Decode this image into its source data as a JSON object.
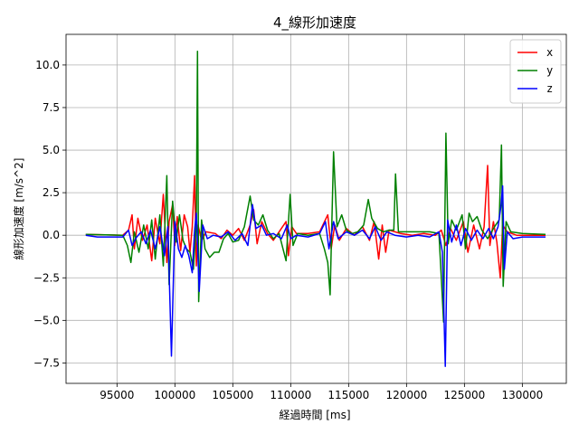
{
  "chart_data": {
    "type": "line",
    "title": "4_線形加速度",
    "xlabel": "経過時間 [ms]",
    "ylabel": "線形加速度 [m/s^2]",
    "xlim": [
      90600,
      133800
    ],
    "ylim": [
      -8.7,
      11.8
    ],
    "xticks": [
      95000,
      100000,
      105000,
      110000,
      115000,
      120000,
      125000,
      130000
    ],
    "xtick_labels": [
      "95000",
      "100000",
      "105000",
      "110000",
      "115000",
      "120000",
      "125000",
      "130000"
    ],
    "yticks": [
      -7.5,
      -5.0,
      -2.5,
      0.0,
      2.5,
      5.0,
      7.5,
      10.0
    ],
    "ytick_labels": [
      "−7.5",
      "−5.0",
      "−2.5",
      "0.0",
      "2.5",
      "5.0",
      "7.5",
      "10.0"
    ],
    "grid": true,
    "legend_position": "top-right",
    "series": [
      {
        "name": "x",
        "color": "#ff0000",
        "points": [
          [
            92300,
            0.05
          ],
          [
            95500,
            0.0
          ],
          [
            96000,
            0.3
          ],
          [
            96300,
            1.2
          ],
          [
            96500,
            -0.8
          ],
          [
            96800,
            1.0
          ],
          [
            97200,
            -0.3
          ],
          [
            97600,
            0.6
          ],
          [
            98000,
            -1.5
          ],
          [
            98300,
            1.0
          ],
          [
            98700,
            -0.5
          ],
          [
            99000,
            2.4
          ],
          [
            99300,
            -1.6
          ],
          [
            99500,
            0.8
          ],
          [
            99800,
            1.8
          ],
          [
            100000,
            -0.6
          ],
          [
            100200,
            1.1
          ],
          [
            100500,
            -0.9
          ],
          [
            100800,
            1.2
          ],
          [
            101100,
            0.5
          ],
          [
            101300,
            -1.0
          ],
          [
            101500,
            0.5
          ],
          [
            101700,
            3.5
          ],
          [
            101850,
            -1.8
          ],
          [
            102000,
            0.6
          ],
          [
            102300,
            -0.3
          ],
          [
            102700,
            0.2
          ],
          [
            103500,
            0.1
          ],
          [
            104000,
            -0.2
          ],
          [
            104500,
            0.3
          ],
          [
            105000,
            0.0
          ],
          [
            105500,
            0.4
          ],
          [
            106000,
            -0.3
          ],
          [
            106500,
            0.6
          ],
          [
            106800,
            1.5
          ],
          [
            107100,
            -0.5
          ],
          [
            107500,
            0.8
          ],
          [
            108000,
            0.1
          ],
          [
            108500,
            -0.3
          ],
          [
            109000,
            0.2
          ],
          [
            109600,
            0.8
          ],
          [
            109800,
            -1.2
          ],
          [
            110100,
            0.5
          ],
          [
            110500,
            0.1
          ],
          [
            111500,
            0.1
          ],
          [
            112500,
            0.2
          ],
          [
            113200,
            1.2
          ],
          [
            113500,
            -0.8
          ],
          [
            113800,
            0.6
          ],
          [
            114200,
            -0.3
          ],
          [
            114800,
            0.4
          ],
          [
            115500,
            0.0
          ],
          [
            116200,
            0.5
          ],
          [
            116800,
            -0.3
          ],
          [
            117200,
            0.8
          ],
          [
            117600,
            -1.4
          ],
          [
            117900,
            0.6
          ],
          [
            118200,
            -1.0
          ],
          [
            118500,
            0.3
          ],
          [
            119000,
            0.2
          ],
          [
            119500,
            0.1
          ],
          [
            120500,
            0.0
          ],
          [
            121500,
            0.1
          ],
          [
            122500,
            0.0
          ],
          [
            123000,
            0.3
          ],
          [
            123400,
            -0.6
          ],
          [
            123800,
            0.4
          ],
          [
            124300,
            -0.3
          ],
          [
            124900,
            0.8
          ],
          [
            125300,
            -1.0
          ],
          [
            125800,
            0.6
          ],
          [
            126300,
            -0.8
          ],
          [
            126700,
            0.5
          ],
          [
            127000,
            4.1
          ],
          [
            127200,
            -0.6
          ],
          [
            127500,
            0.8
          ],
          [
            127800,
            -0.4
          ],
          [
            128100,
            -2.5
          ],
          [
            128300,
            0.6
          ],
          [
            128700,
            0.2
          ],
          [
            129500,
            0.0
          ],
          [
            132000,
            0.0
          ]
        ]
      },
      {
        "name": "y",
        "color": "#008000",
        "points": [
          [
            92300,
            0.05
          ],
          [
            95500,
            0.0
          ],
          [
            95900,
            -0.6
          ],
          [
            96200,
            -1.6
          ],
          [
            96500,
            0.2
          ],
          [
            96900,
            -1.0
          ],
          [
            97300,
            0.6
          ],
          [
            97700,
            -0.8
          ],
          [
            98000,
            0.9
          ],
          [
            98300,
            -1.4
          ],
          [
            98700,
            1.2
          ],
          [
            99000,
            -1.8
          ],
          [
            99300,
            3.5
          ],
          [
            99500,
            -2.9
          ],
          [
            99800,
            2.0
          ],
          [
            100100,
            -0.4
          ],
          [
            100400,
            1.2
          ],
          [
            100700,
            -0.3
          ],
          [
            101000,
            -0.8
          ],
          [
            101300,
            -1.0
          ],
          [
            101600,
            -2.0
          ],
          [
            101850,
            0.8
          ],
          [
            101950,
            10.8
          ],
          [
            102050,
            -3.9
          ],
          [
            102300,
            0.9
          ],
          [
            102600,
            -0.8
          ],
          [
            103000,
            -1.3
          ],
          [
            103400,
            -1.0
          ],
          [
            103800,
            -1.0
          ],
          [
            104200,
            -0.2
          ],
          [
            104600,
            0.1
          ],
          [
            105000,
            -0.4
          ],
          [
            105500,
            -0.3
          ],
          [
            106000,
            0.5
          ],
          [
            106500,
            2.3
          ],
          [
            106800,
            0.9
          ],
          [
            107200,
            0.6
          ],
          [
            107600,
            1.2
          ],
          [
            108000,
            0.3
          ],
          [
            108500,
            -0.2
          ],
          [
            109000,
            0.1
          ],
          [
            109600,
            -1.5
          ],
          [
            109950,
            2.4
          ],
          [
            110200,
            -0.6
          ],
          [
            110600,
            0.1
          ],
          [
            111500,
            0.0
          ],
          [
            112500,
            0.1
          ],
          [
            112900,
            -0.8
          ],
          [
            113200,
            -1.6
          ],
          [
            113400,
            -3.5
          ],
          [
            113700,
            4.9
          ],
          [
            114000,
            0.5
          ],
          [
            114400,
            1.2
          ],
          [
            114800,
            0.3
          ],
          [
            115300,
            0.1
          ],
          [
            115800,
            0.2
          ],
          [
            116300,
            0.6
          ],
          [
            116700,
            2.1
          ],
          [
            117000,
            1.0
          ],
          [
            117500,
            0.4
          ],
          [
            118000,
            0.2
          ],
          [
            118500,
            0.3
          ],
          [
            118900,
            0.3
          ],
          [
            119050,
            3.6
          ],
          [
            119300,
            0.2
          ],
          [
            120000,
            0.2
          ],
          [
            121000,
            0.2
          ],
          [
            122000,
            0.2
          ],
          [
            122800,
            0.1
          ],
          [
            123000,
            -2.5
          ],
          [
            123200,
            -5.1
          ],
          [
            123400,
            6.0
          ],
          [
            123600,
            -0.5
          ],
          [
            123900,
            0.9
          ],
          [
            124300,
            0.3
          ],
          [
            124800,
            1.2
          ],
          [
            125100,
            -0.8
          ],
          [
            125400,
            1.3
          ],
          [
            125700,
            0.8
          ],
          [
            126100,
            1.1
          ],
          [
            126500,
            0.3
          ],
          [
            127000,
            -0.2
          ],
          [
            127600,
            0.5
          ],
          [
            128000,
            0.9
          ],
          [
            128200,
            5.3
          ],
          [
            128350,
            -3.0
          ],
          [
            128600,
            0.8
          ],
          [
            129000,
            0.2
          ],
          [
            130000,
            0.1
          ],
          [
            132000,
            0.05
          ]
        ]
      },
      {
        "name": "z",
        "color": "#0000ff",
        "points": [
          [
            92300,
            0.0
          ],
          [
            93300,
            -0.1
          ],
          [
            95500,
            -0.1
          ],
          [
            96000,
            0.3
          ],
          [
            96300,
            -0.6
          ],
          [
            96700,
            -0.1
          ],
          [
            97100,
            0.2
          ],
          [
            97500,
            -0.5
          ],
          [
            97900,
            0.3
          ],
          [
            98300,
            -0.8
          ],
          [
            98700,
            0.5
          ],
          [
            99100,
            -1.2
          ],
          [
            99400,
            0.5
          ],
          [
            99700,
            -7.1
          ],
          [
            100000,
            0.8
          ],
          [
            100300,
            -0.8
          ],
          [
            100600,
            -1.3
          ],
          [
            100900,
            -0.6
          ],
          [
            101200,
            -1.2
          ],
          [
            101500,
            -2.2
          ],
          [
            101700,
            0.3
          ],
          [
            101850,
            1.3
          ],
          [
            102100,
            -3.3
          ],
          [
            102400,
            0.6
          ],
          [
            102800,
            -0.2
          ],
          [
            103300,
            0.0
          ],
          [
            104000,
            -0.1
          ],
          [
            104600,
            0.2
          ],
          [
            105200,
            -0.3
          ],
          [
            105800,
            0.1
          ],
          [
            106300,
            -0.6
          ],
          [
            106700,
            1.8
          ],
          [
            107000,
            0.4
          ],
          [
            107500,
            0.6
          ],
          [
            107900,
            0.0
          ],
          [
            108500,
            0.1
          ],
          [
            109200,
            -0.2
          ],
          [
            109700,
            0.6
          ],
          [
            110000,
            -0.2
          ],
          [
            110500,
            0.0
          ],
          [
            111500,
            -0.1
          ],
          [
            112500,
            0.1
          ],
          [
            113000,
            0.8
          ],
          [
            113300,
            -0.8
          ],
          [
            113700,
            0.8
          ],
          [
            114100,
            -0.2
          ],
          [
            114800,
            0.2
          ],
          [
            115500,
            0.0
          ],
          [
            116200,
            0.3
          ],
          [
            116800,
            -0.2
          ],
          [
            117300,
            0.5
          ],
          [
            117800,
            -0.3
          ],
          [
            118300,
            0.2
          ],
          [
            119000,
            0.0
          ],
          [
            120000,
            -0.1
          ],
          [
            121000,
            0.0
          ],
          [
            122000,
            -0.1
          ],
          [
            122800,
            0.2
          ],
          [
            123100,
            -1.0
          ],
          [
            123350,
            -7.7
          ],
          [
            123550,
            0.9
          ],
          [
            123900,
            -0.4
          ],
          [
            124300,
            0.6
          ],
          [
            124700,
            -0.6
          ],
          [
            125100,
            0.4
          ],
          [
            125600,
            -0.3
          ],
          [
            126100,
            0.3
          ],
          [
            126600,
            -0.2
          ],
          [
            127100,
            0.4
          ],
          [
            127500,
            -0.2
          ],
          [
            127900,
            0.5
          ],
          [
            128150,
            1.7
          ],
          [
            128300,
            2.9
          ],
          [
            128450,
            -2.0
          ],
          [
            128700,
            0.2
          ],
          [
            129200,
            -0.2
          ],
          [
            130000,
            -0.1
          ],
          [
            132000,
            -0.1
          ]
        ]
      }
    ]
  }
}
